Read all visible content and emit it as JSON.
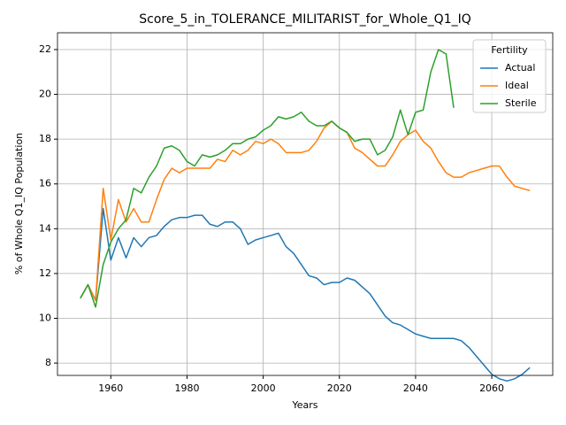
{
  "chart_data": {
    "type": "line",
    "title": "Score_5_in_TOLERANCE_MILITARIST_for_Whole_Q1_IQ",
    "xlabel": "Years",
    "ylabel": "% of Whole Q1_IQ Population",
    "x": [
      1952,
      1954,
      1956,
      1958,
      1960,
      1962,
      1964,
      1966,
      1968,
      1970,
      1972,
      1974,
      1976,
      1978,
      1980,
      1982,
      1984,
      1986,
      1988,
      1990,
      1992,
      1994,
      1996,
      1998,
      2000,
      2002,
      2004,
      2006,
      2008,
      2010,
      2012,
      2014,
      2016,
      2018,
      2020,
      2022,
      2024,
      2026,
      2028,
      2030,
      2032,
      2034,
      2036,
      2038,
      2040,
      2042,
      2044,
      2046,
      2048,
      2050,
      2052,
      2054,
      2056,
      2058,
      2060,
      2062,
      2064,
      2066,
      2068,
      2070
    ],
    "series": [
      {
        "name": "Actual",
        "color": "#1f77b4",
        "values": [
          10.9,
          11.5,
          10.8,
          14.9,
          12.6,
          13.6,
          12.7,
          13.6,
          13.2,
          13.6,
          13.7,
          14.1,
          14.4,
          14.5,
          14.5,
          14.6,
          14.6,
          14.2,
          14.1,
          14.3,
          14.3,
          14.0,
          13.3,
          13.5,
          13.6,
          13.7,
          13.8,
          13.2,
          12.9,
          12.4,
          11.9,
          11.8,
          11.5,
          11.6,
          11.6,
          11.8,
          11.7,
          11.4,
          11.1,
          10.6,
          10.1,
          9.8,
          9.7,
          9.5,
          9.3,
          9.2,
          9.1,
          9.1,
          9.1,
          9.1,
          9.0,
          8.7,
          8.3,
          7.9,
          7.5,
          7.3,
          7.2,
          7.3,
          7.5,
          7.8
        ]
      },
      {
        "name": "Ideal",
        "color": "#ff7f0e",
        "values": [
          10.9,
          11.5,
          10.8,
          15.8,
          13.5,
          15.3,
          14.3,
          14.9,
          14.3,
          14.3,
          15.3,
          16.2,
          16.7,
          16.5,
          16.7,
          16.7,
          16.7,
          16.7,
          17.1,
          17.0,
          17.5,
          17.3,
          17.5,
          17.9,
          17.8,
          18.0,
          17.8,
          17.4,
          17.4,
          17.4,
          17.5,
          17.9,
          18.5,
          18.8,
          18.5,
          18.3,
          17.6,
          17.4,
          17.1,
          16.8,
          16.8,
          17.3,
          17.9,
          18.2,
          18.4,
          17.9,
          17.6,
          17.0,
          16.5,
          16.3,
          16.3,
          16.5,
          16.6,
          16.7,
          16.8,
          16.8,
          16.3,
          15.9,
          15.8,
          15.7
        ]
      },
      {
        "name": "Sterile",
        "color": "#2ca02c",
        "values": [
          10.9,
          11.5,
          10.5,
          12.4,
          13.4,
          14.0,
          14.4,
          15.8,
          15.6,
          16.3,
          16.8,
          17.6,
          17.7,
          17.5,
          17.0,
          16.8,
          17.3,
          17.2,
          17.3,
          17.5,
          17.8,
          17.8,
          18.0,
          18.1,
          18.4,
          18.6,
          19.0,
          18.9,
          19.0,
          19.2,
          18.8,
          18.6,
          18.6,
          18.8,
          18.5,
          18.3,
          17.9,
          18.0,
          18.0,
          17.3,
          17.5,
          18.1,
          19.3,
          18.2,
          19.2,
          19.3,
          21.0,
          22.0,
          21.8,
          19.4,
          null,
          null,
          null,
          null,
          null,
          null,
          null,
          null,
          null,
          null
        ]
      }
    ],
    "xlim": [
      1946,
      2076
    ],
    "xticks": [
      1960,
      1980,
      2000,
      2020,
      2040,
      2060
    ],
    "ylim": [
      7.45,
      22.75
    ],
    "yticks": [
      8,
      10,
      12,
      14,
      16,
      18,
      20,
      22
    ],
    "grid": true,
    "legend_title": "Fertility",
    "legend": "upper right"
  }
}
